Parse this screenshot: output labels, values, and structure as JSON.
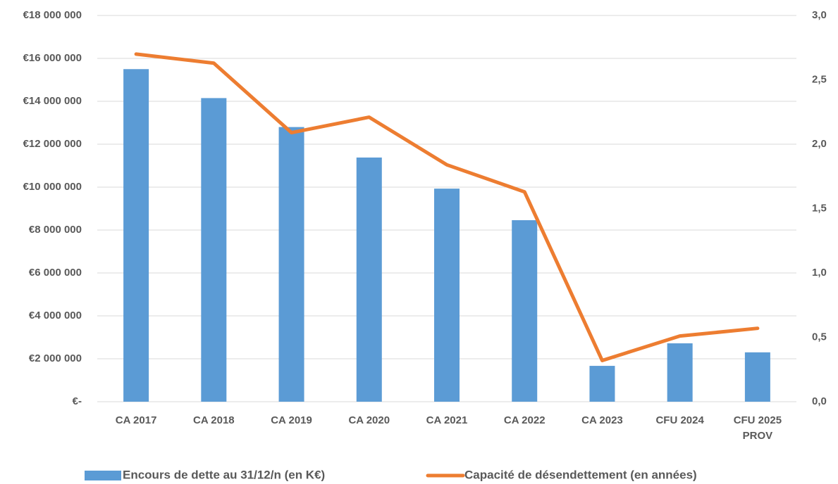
{
  "chart_data": {
    "type": "bar_line",
    "categories": [
      "CA 2017",
      "CA 2018",
      "CA 2019",
      "CA 2020",
      "CA 2021",
      "CA 2022",
      "CA 2023",
      "CFU 2024",
      "CFU 2025 PROV"
    ],
    "series": [
      {
        "name": "Encours de dette au 31/12/n (en K€)",
        "color": "#5b9bd5",
        "type": "bar",
        "values": [
          15500000,
          14150000,
          12800000,
          11380000,
          9930000,
          8460000,
          1670000,
          2720000,
          2300000
        ]
      },
      {
        "name": "Capacité de désendettement (en années)",
        "color": "#ed7d31",
        "type": "line",
        "axis": "y2",
        "values": [
          2.7,
          2.63,
          2.09,
          2.21,
          1.84,
          1.63,
          0.32,
          0.51,
          0.57
        ]
      }
    ],
    "ylim": [
      0,
      18000000
    ],
    "yticks": [
      {
        "value": 0,
        "label": "€-"
      },
      {
        "value": 2000000,
        "label": "€2 000 000"
      },
      {
        "value": 4000000,
        "label": "€4 000 000"
      },
      {
        "value": 6000000,
        "label": "€6 000 000"
      },
      {
        "value": 8000000,
        "label": "€8 000 000"
      },
      {
        "value": 10000000,
        "label": "€10 000 000"
      },
      {
        "value": 12000000,
        "label": "€12 000 000"
      },
      {
        "value": 14000000,
        "label": "€14 000 000"
      },
      {
        "value": 16000000,
        "label": "€16 000 000"
      },
      {
        "value": 18000000,
        "label": "€18 000 000"
      }
    ],
    "y2lim": [
      0,
      3
    ],
    "y2ticks": [
      {
        "value": 0,
        "label": "0,0"
      },
      {
        "value": 0.5,
        "label": "0,5"
      },
      {
        "value": 1,
        "label": "1,0"
      },
      {
        "value": 1.5,
        "label": "1,5"
      },
      {
        "value": 2,
        "label": "2,0"
      },
      {
        "value": 2.5,
        "label": "2,5"
      },
      {
        "value": 3,
        "label": "3,0"
      }
    ],
    "grid": true
  }
}
